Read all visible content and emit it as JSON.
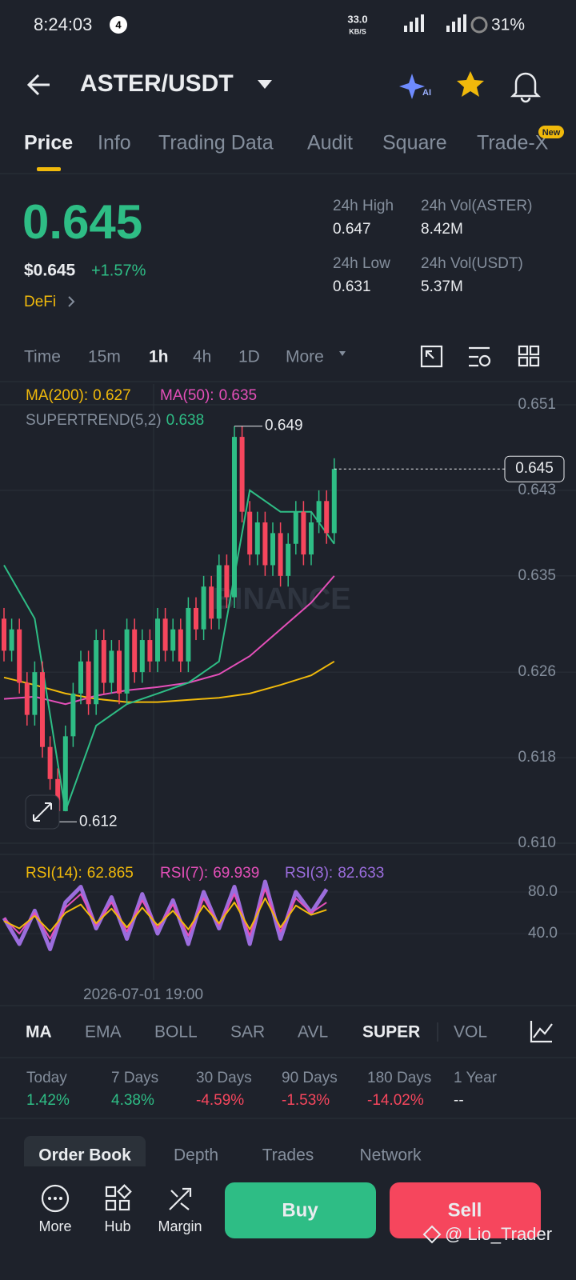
{
  "status_bar": {
    "time": "8:24:03",
    "notification": "4",
    "speed": "33.0",
    "speed_unit": "KB/S",
    "battery": "31%"
  },
  "header": {
    "pair": "ASTER/USDT",
    "ai_badge": "AI"
  },
  "tabs": [
    "Price",
    "Info",
    "Trading Data",
    "Audit",
    "Square",
    "Trade-X"
  ],
  "new_badge": "New",
  "ticker": {
    "price": "0.645",
    "usd_price": "$0.645",
    "change": "+1.57%",
    "tag": "DeFi",
    "stats": [
      {
        "label": "24h High",
        "value": "0.647"
      },
      {
        "label": "24h Vol(ASTER)",
        "value": "8.42M"
      },
      {
        "label": "24h Low",
        "value": "0.631"
      },
      {
        "label": "24h Vol(USDT)",
        "value": "5.37M"
      }
    ]
  },
  "intervals": [
    "Time",
    "15m",
    "1h",
    "4h",
    "1D",
    "More"
  ],
  "chart": {
    "watermark": "BINANCE",
    "ylim": [
      0.61,
      0.651
    ],
    "yticks": [
      0.651,
      0.643,
      0.635,
      0.626,
      0.618,
      {
        "value": 0.61,
        "label": "0.610"
      }
    ],
    "last_price": 0.645,
    "high_marker": 0.649,
    "low_marker": 0.612,
    "candles": [
      [
        0.631,
        0.632,
        0.627,
        0.628
      ],
      [
        0.628,
        0.631,
        0.627,
        0.63
      ],
      [
        0.63,
        0.631,
        0.624,
        0.625
      ],
      [
        0.625,
        0.626,
        0.621,
        0.622
      ],
      [
        0.622,
        0.627,
        0.621,
        0.626
      ],
      [
        0.626,
        0.627,
        0.618,
        0.619
      ],
      [
        0.619,
        0.62,
        0.615,
        0.616
      ],
      [
        0.616,
        0.617,
        0.612,
        0.613
      ],
      [
        0.613,
        0.621,
        0.613,
        0.62
      ],
      [
        0.62,
        0.625,
        0.619,
        0.624
      ],
      [
        0.624,
        0.628,
        0.623,
        0.627
      ],
      [
        0.627,
        0.628,
        0.622,
        0.623
      ],
      [
        0.623,
        0.63,
        0.622,
        0.629
      ],
      [
        0.629,
        0.63,
        0.624,
        0.625
      ],
      [
        0.625,
        0.629,
        0.624,
        0.628
      ],
      [
        0.628,
        0.629,
        0.623,
        0.624
      ],
      [
        0.624,
        0.631,
        0.623,
        0.63
      ],
      [
        0.63,
        0.631,
        0.625,
        0.626
      ],
      [
        0.626,
        0.63,
        0.625,
        0.629
      ],
      [
        0.629,
        0.63,
        0.626,
        0.627
      ],
      [
        0.627,
        0.632,
        0.626,
        0.631
      ],
      [
        0.631,
        0.632,
        0.627,
        0.628
      ],
      [
        0.628,
        0.631,
        0.627,
        0.63
      ],
      [
        0.63,
        0.631,
        0.626,
        0.627
      ],
      [
        0.627,
        0.633,
        0.626,
        0.632
      ],
      [
        0.632,
        0.633,
        0.629,
        0.63
      ],
      [
        0.63,
        0.635,
        0.629,
        0.634
      ],
      [
        0.634,
        0.635,
        0.63,
        0.631
      ],
      [
        0.631,
        0.637,
        0.63,
        0.636
      ],
      [
        0.636,
        0.637,
        0.632,
        0.633
      ],
      [
        0.633,
        0.649,
        0.632,
        0.648
      ],
      [
        0.648,
        0.649,
        0.64,
        0.641
      ],
      [
        0.641,
        0.642,
        0.636,
        0.637
      ],
      [
        0.637,
        0.641,
        0.636,
        0.64
      ],
      [
        0.64,
        0.641,
        0.635,
        0.636
      ],
      [
        0.636,
        0.64,
        0.635,
        0.639
      ],
      [
        0.639,
        0.64,
        0.634,
        0.635
      ],
      [
        0.635,
        0.639,
        0.634,
        0.638
      ],
      [
        0.638,
        0.642,
        0.637,
        0.641
      ],
      [
        0.641,
        0.642,
        0.636,
        0.637
      ],
      [
        0.637,
        0.641,
        0.636,
        0.64
      ],
      [
        0.64,
        0.643,
        0.639,
        0.642
      ],
      [
        0.642,
        0.643,
        0.638,
        0.639
      ],
      [
        0.639,
        0.646,
        0.638,
        0.645
      ]
    ],
    "overlay_x": [
      0,
      4,
      8,
      12,
      16,
      20,
      24,
      28,
      32,
      36,
      40,
      43
    ],
    "overlays": [
      {
        "name": "MA(200):",
        "value": 0.627,
        "color": "#f0b90b",
        "values": [
          0.6255,
          0.6248,
          0.624,
          0.6235,
          0.6232,
          0.6232,
          0.6234,
          0.6236,
          0.624,
          0.6248,
          0.6257,
          0.627
        ]
      },
      {
        "name": "MA(50):",
        "value": 0.635,
        "color": "#e44fb9",
        "values": [
          0.6235,
          0.6237,
          0.623,
          0.6238,
          0.6243,
          0.6246,
          0.625,
          0.6258,
          0.6275,
          0.63,
          0.6325,
          0.635
        ]
      },
      {
        "name": "SUPERTREND(5,2)",
        "value": 0.638,
        "color": "#2ebd85",
        "values": [
          0.636,
          0.631,
          0.613,
          0.621,
          0.623,
          0.624,
          0.625,
          0.627,
          0.643,
          0.641,
          0.641,
          0.638
        ]
      }
    ],
    "rsi": {
      "ylim": [
        0,
        100
      ],
      "yticks": [
        {
          "value": 80,
          "label": "80.0"
        },
        {
          "value": 40,
          "label": "40.0"
        }
      ],
      "x": [
        0,
        2,
        4,
        6,
        8,
        10,
        12,
        14,
        16,
        18,
        20,
        22,
        24,
        26,
        28,
        30,
        32,
        34,
        36,
        38,
        40,
        42
      ],
      "series": [
        {
          "name": "RSI(14):",
          "value": 62.865,
          "color": "#f0b90b",
          "values": [
            52,
            45,
            57,
            42,
            60,
            68,
            50,
            64,
            46,
            65,
            48,
            62,
            44,
            67,
            50,
            70,
            44,
            74,
            46,
            67,
            58,
            62.865
          ]
        },
        {
          "name": "RSI(7):",
          "value": 69.939,
          "color": "#e44fb9",
          "values": [
            55,
            40,
            60,
            35,
            65,
            78,
            48,
            70,
            42,
            72,
            45,
            68,
            38,
            74,
            48,
            78,
            38,
            83,
            42,
            74,
            60,
            69.939
          ]
        },
        {
          "name": "RSI(3):",
          "value": 82.633,
          "color": "#9b6ddd",
          "values": [
            55,
            30,
            62,
            25,
            70,
            85,
            45,
            75,
            35,
            78,
            40,
            72,
            30,
            80,
            45,
            85,
            30,
            90,
            35,
            80,
            60,
            82.633
          ]
        }
      ]
    },
    "time_label": "2026-07-01 19:00"
  },
  "indicators": [
    "MA",
    "EMA",
    "BOLL",
    "SAR",
    "AVL",
    "SUPER",
    "VOL"
  ],
  "performance": [
    {
      "label": "Today",
      "value": "1.42%"
    },
    {
      "label": "7 Days",
      "value": "4.38%"
    },
    {
      "label": "30 Days",
      "value": "-4.59%"
    },
    {
      "label": "90 Days",
      "value": "-1.53%"
    },
    {
      "label": "180 Days",
      "value": "-14.02%"
    },
    {
      "label": "1 Year",
      "value": "--"
    }
  ],
  "bottom_tabs": [
    "Order Book",
    "Depth",
    "Trades",
    "Network"
  ],
  "nav": [
    "More",
    "Hub",
    "Margin"
  ],
  "buy": "Buy",
  "sell": "Sell",
  "watermark": "@ Lio_Trader"
}
